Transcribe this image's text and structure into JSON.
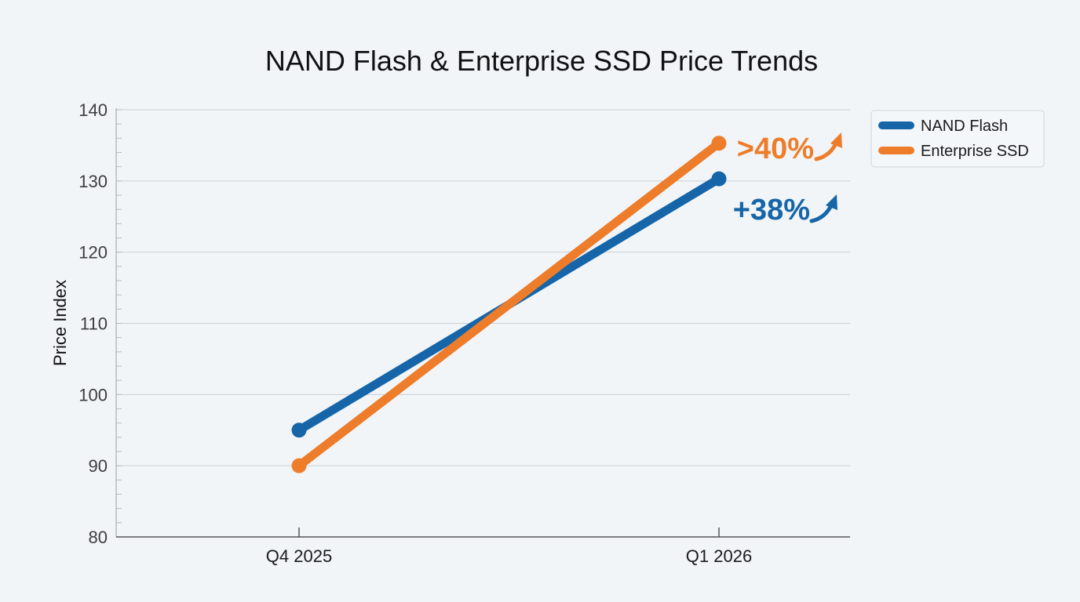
{
  "chart_data": {
    "type": "line",
    "title": "NAND Flash & Enterprise SSD Price Trends",
    "xlabel": "",
    "ylabel": "Price Index",
    "categories": [
      "Q4 2025",
      "Q1 2026"
    ],
    "ylim": [
      80,
      140
    ],
    "yticks": [
      80,
      90,
      100,
      110,
      120,
      130,
      140
    ],
    "grid": true,
    "legend_position": "top-right",
    "series": [
      {
        "name": "NAND Flash",
        "values": [
          95,
          130.3
        ],
        "color": "#1565a8",
        "annotation": "+38%"
      },
      {
        "name": "Enterprise SSD",
        "values": [
          90,
          135.3
        ],
        "color": "#ed7d2b",
        "annotation": ">40%"
      }
    ]
  }
}
